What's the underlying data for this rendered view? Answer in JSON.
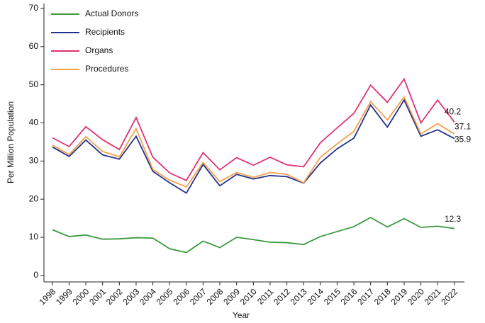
{
  "chart_data": {
    "type": "line",
    "xlabel": "Year",
    "ylabel": "Per Million Population",
    "x": [
      1998,
      1999,
      2000,
      2001,
      2002,
      2003,
      2004,
      2005,
      2006,
      2007,
      2008,
      2009,
      2010,
      2011,
      2012,
      2013,
      2014,
      2015,
      2016,
      2017,
      2018,
      2019,
      2020,
      2021,
      2022
    ],
    "xlim": [
      1997.5,
      2022.6
    ],
    "xticks": [
      1998,
      1999,
      2000,
      2001,
      2002,
      2003,
      2004,
      2005,
      2006,
      2007,
      2008,
      2009,
      2010,
      2011,
      2012,
      2013,
      2014,
      2015,
      2016,
      2017,
      2018,
      2019,
      2020,
      2021,
      2022
    ],
    "ylim": [
      -1.7,
      71.3
    ],
    "yticks": [
      0,
      10,
      20,
      30,
      40,
      50,
      60,
      70
    ],
    "grid": false,
    "legend": "upper left",
    "end_labels": true,
    "series": [
      {
        "name": "Actual Donors",
        "color": "#3b9a3b",
        "values": [
          12.0,
          10.2,
          10.6,
          9.5,
          9.6,
          9.9,
          9.8,
          7.0,
          6.0,
          9.0,
          7.3,
          10.0,
          9.4,
          8.7,
          8.6,
          8.1,
          10.2,
          11.5,
          12.8,
          15.2,
          12.7,
          14.9,
          12.6,
          12.9,
          12.3
        ]
      },
      {
        "name": "Recipients",
        "color": "#23318a",
        "values": [
          33.7,
          31.2,
          35.5,
          31.6,
          30.5,
          36.5,
          27.3,
          24.3,
          21.6,
          29.1,
          23.5,
          26.5,
          25.3,
          26.2,
          25.9,
          24.2,
          29.5,
          33.2,
          36.0,
          44.7,
          38.9,
          46.0,
          36.5,
          38.2,
          35.9
        ]
      },
      {
        "name": "Organs",
        "color": "#e0336f",
        "values": [
          36.1,
          33.8,
          39.0,
          35.6,
          33.0,
          41.4,
          31.0,
          26.9,
          24.9,
          32.2,
          27.7,
          30.9,
          28.9,
          31.0,
          29.0,
          28.5,
          34.8,
          38.7,
          42.5,
          49.9,
          45.4,
          51.5,
          40.0,
          46.0,
          40.2
        ]
      },
      {
        "name": "Procedures",
        "color": "#f5a04a",
        "values": [
          34.2,
          31.7,
          36.4,
          32.5,
          31.1,
          38.5,
          27.8,
          25.0,
          23.2,
          29.6,
          24.6,
          27.0,
          25.7,
          27.0,
          26.5,
          24.3,
          31.0,
          34.5,
          37.8,
          45.6,
          40.8,
          46.8,
          37.1,
          39.8,
          37.1
        ]
      }
    ]
  }
}
